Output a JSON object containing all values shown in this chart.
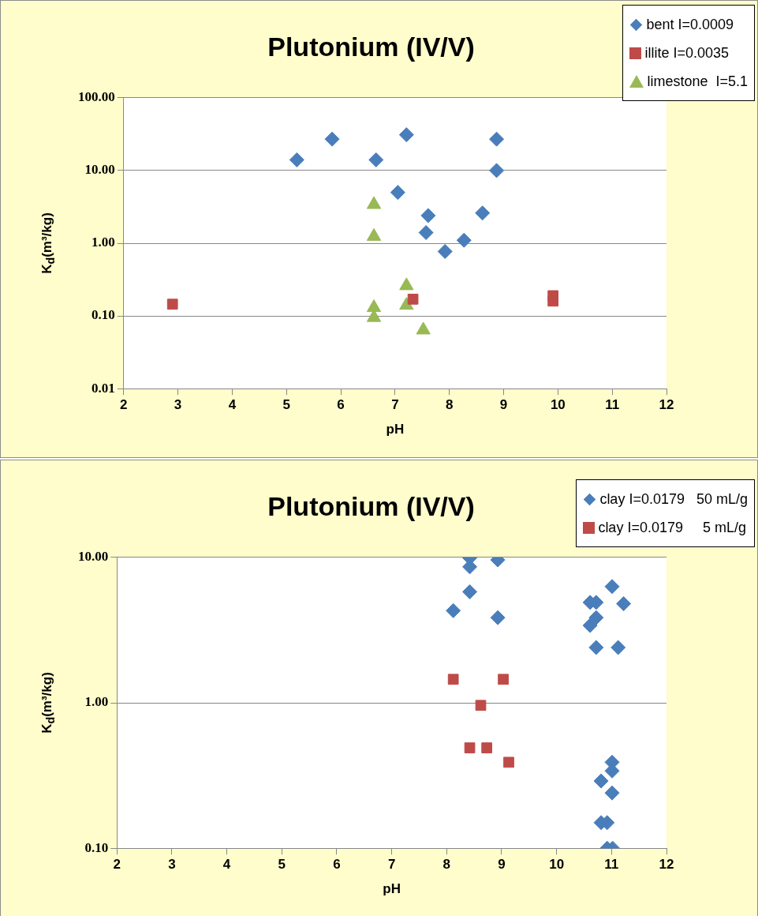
{
  "chart_data": [
    {
      "type": "scatter",
      "title": "Plutonium (IV/V)",
      "xlabel": "pH",
      "ylabel": "K$_{d}$(m³/kg)",
      "log": "y",
      "grid": "y",
      "legend": "top right",
      "xlim": [
        2,
        12
      ],
      "xticks": [
        2,
        3,
        4,
        5,
        6,
        7,
        8,
        9,
        10,
        11,
        12
      ],
      "ylim": [
        0.01,
        100
      ],
      "yticks": [
        {
          "value": 0.01,
          "label": "0.01"
        },
        {
          "value": 0.1,
          "label": "0.10"
        },
        {
          "value": 1,
          "label": "1.00"
        },
        {
          "value": 10,
          "label": "10.00"
        },
        {
          "value": 100,
          "label": "100.00"
        }
      ],
      "series": [
        {
          "name": "bent I=0.0009",
          "color": "#4a7ebb",
          "marker": "diamond",
          "x": [
            5.19,
            5.84,
            6.65,
            7.21,
            7.05,
            7.61,
            7.57,
            7.92,
            8.27,
            8.61,
            8.87,
            8.87
          ],
          "values": [
            14,
            27,
            14,
            31,
            5.0,
            2.4,
            1.4,
            0.77,
            1.1,
            2.6,
            27,
            10
          ]
        },
        {
          "name": "illite I=0.0035",
          "color": "#be4b48",
          "marker": "square",
          "x": [
            2.9,
            7.33,
            9.91,
            9.91
          ],
          "values": [
            0.145,
            0.17,
            0.16,
            0.19
          ]
        },
        {
          "name": "limestone  I=5.1",
          "color": "#98b954",
          "marker": "triangle",
          "x": [
            6.61,
            6.61,
            6.61,
            6.61,
            7.21,
            7.21,
            7.52
          ],
          "values": [
            3.4,
            1.24,
            0.13,
            0.095,
            0.26,
            0.14,
            0.064
          ]
        }
      ]
    },
    {
      "type": "scatter",
      "title": "Plutonium (IV/V)",
      "xlabel": "pH",
      "ylabel": "K$_{d}$(m³/kg)",
      "log": "y",
      "grid": "y",
      "legend": "top right",
      "xlim": [
        2,
        12
      ],
      "xticks": [
        2,
        3,
        4,
        5,
        6,
        7,
        8,
        9,
        10,
        11,
        12
      ],
      "ylim": [
        0.1,
        10
      ],
      "yticks": [
        {
          "value": 0.1,
          "label": "0.10"
        },
        {
          "value": 1,
          "label": "1.00"
        },
        {
          "value": 10,
          "label": "10.00"
        }
      ],
      "series": [
        {
          "name": "clay I=0.0179   50 mL/g",
          "color": "#4a7ebb",
          "marker": "diamond",
          "x": [
            8.42,
            8.42,
            8.42,
            8.12,
            8.93,
            8.93,
            10.61,
            10.72,
            10.72,
            10.61,
            10.72,
            11.01,
            11.22,
            11.12,
            11.01,
            11.01,
            10.81,
            11.01,
            10.81,
            10.92,
            10.92,
            11.02
          ],
          "values": [
            9.9,
            8.6,
            5.8,
            4.3,
            9.6,
            3.85,
            4.9,
            4.9,
            3.85,
            3.4,
            2.4,
            6.3,
            4.8,
            2.4,
            0.39,
            0.34,
            0.29,
            0.24,
            0.15,
            0.15,
            0.1,
            0.1
          ]
        },
        {
          "name": "clay I=0.0179     5 mL/g",
          "color": "#be4b48",
          "marker": "square",
          "x": [
            8.12,
            9.03,
            8.62,
            8.42,
            8.73,
            9.13
          ],
          "values": [
            1.45,
            1.45,
            0.96,
            0.49,
            0.49,
            0.39
          ]
        }
      ]
    }
  ]
}
